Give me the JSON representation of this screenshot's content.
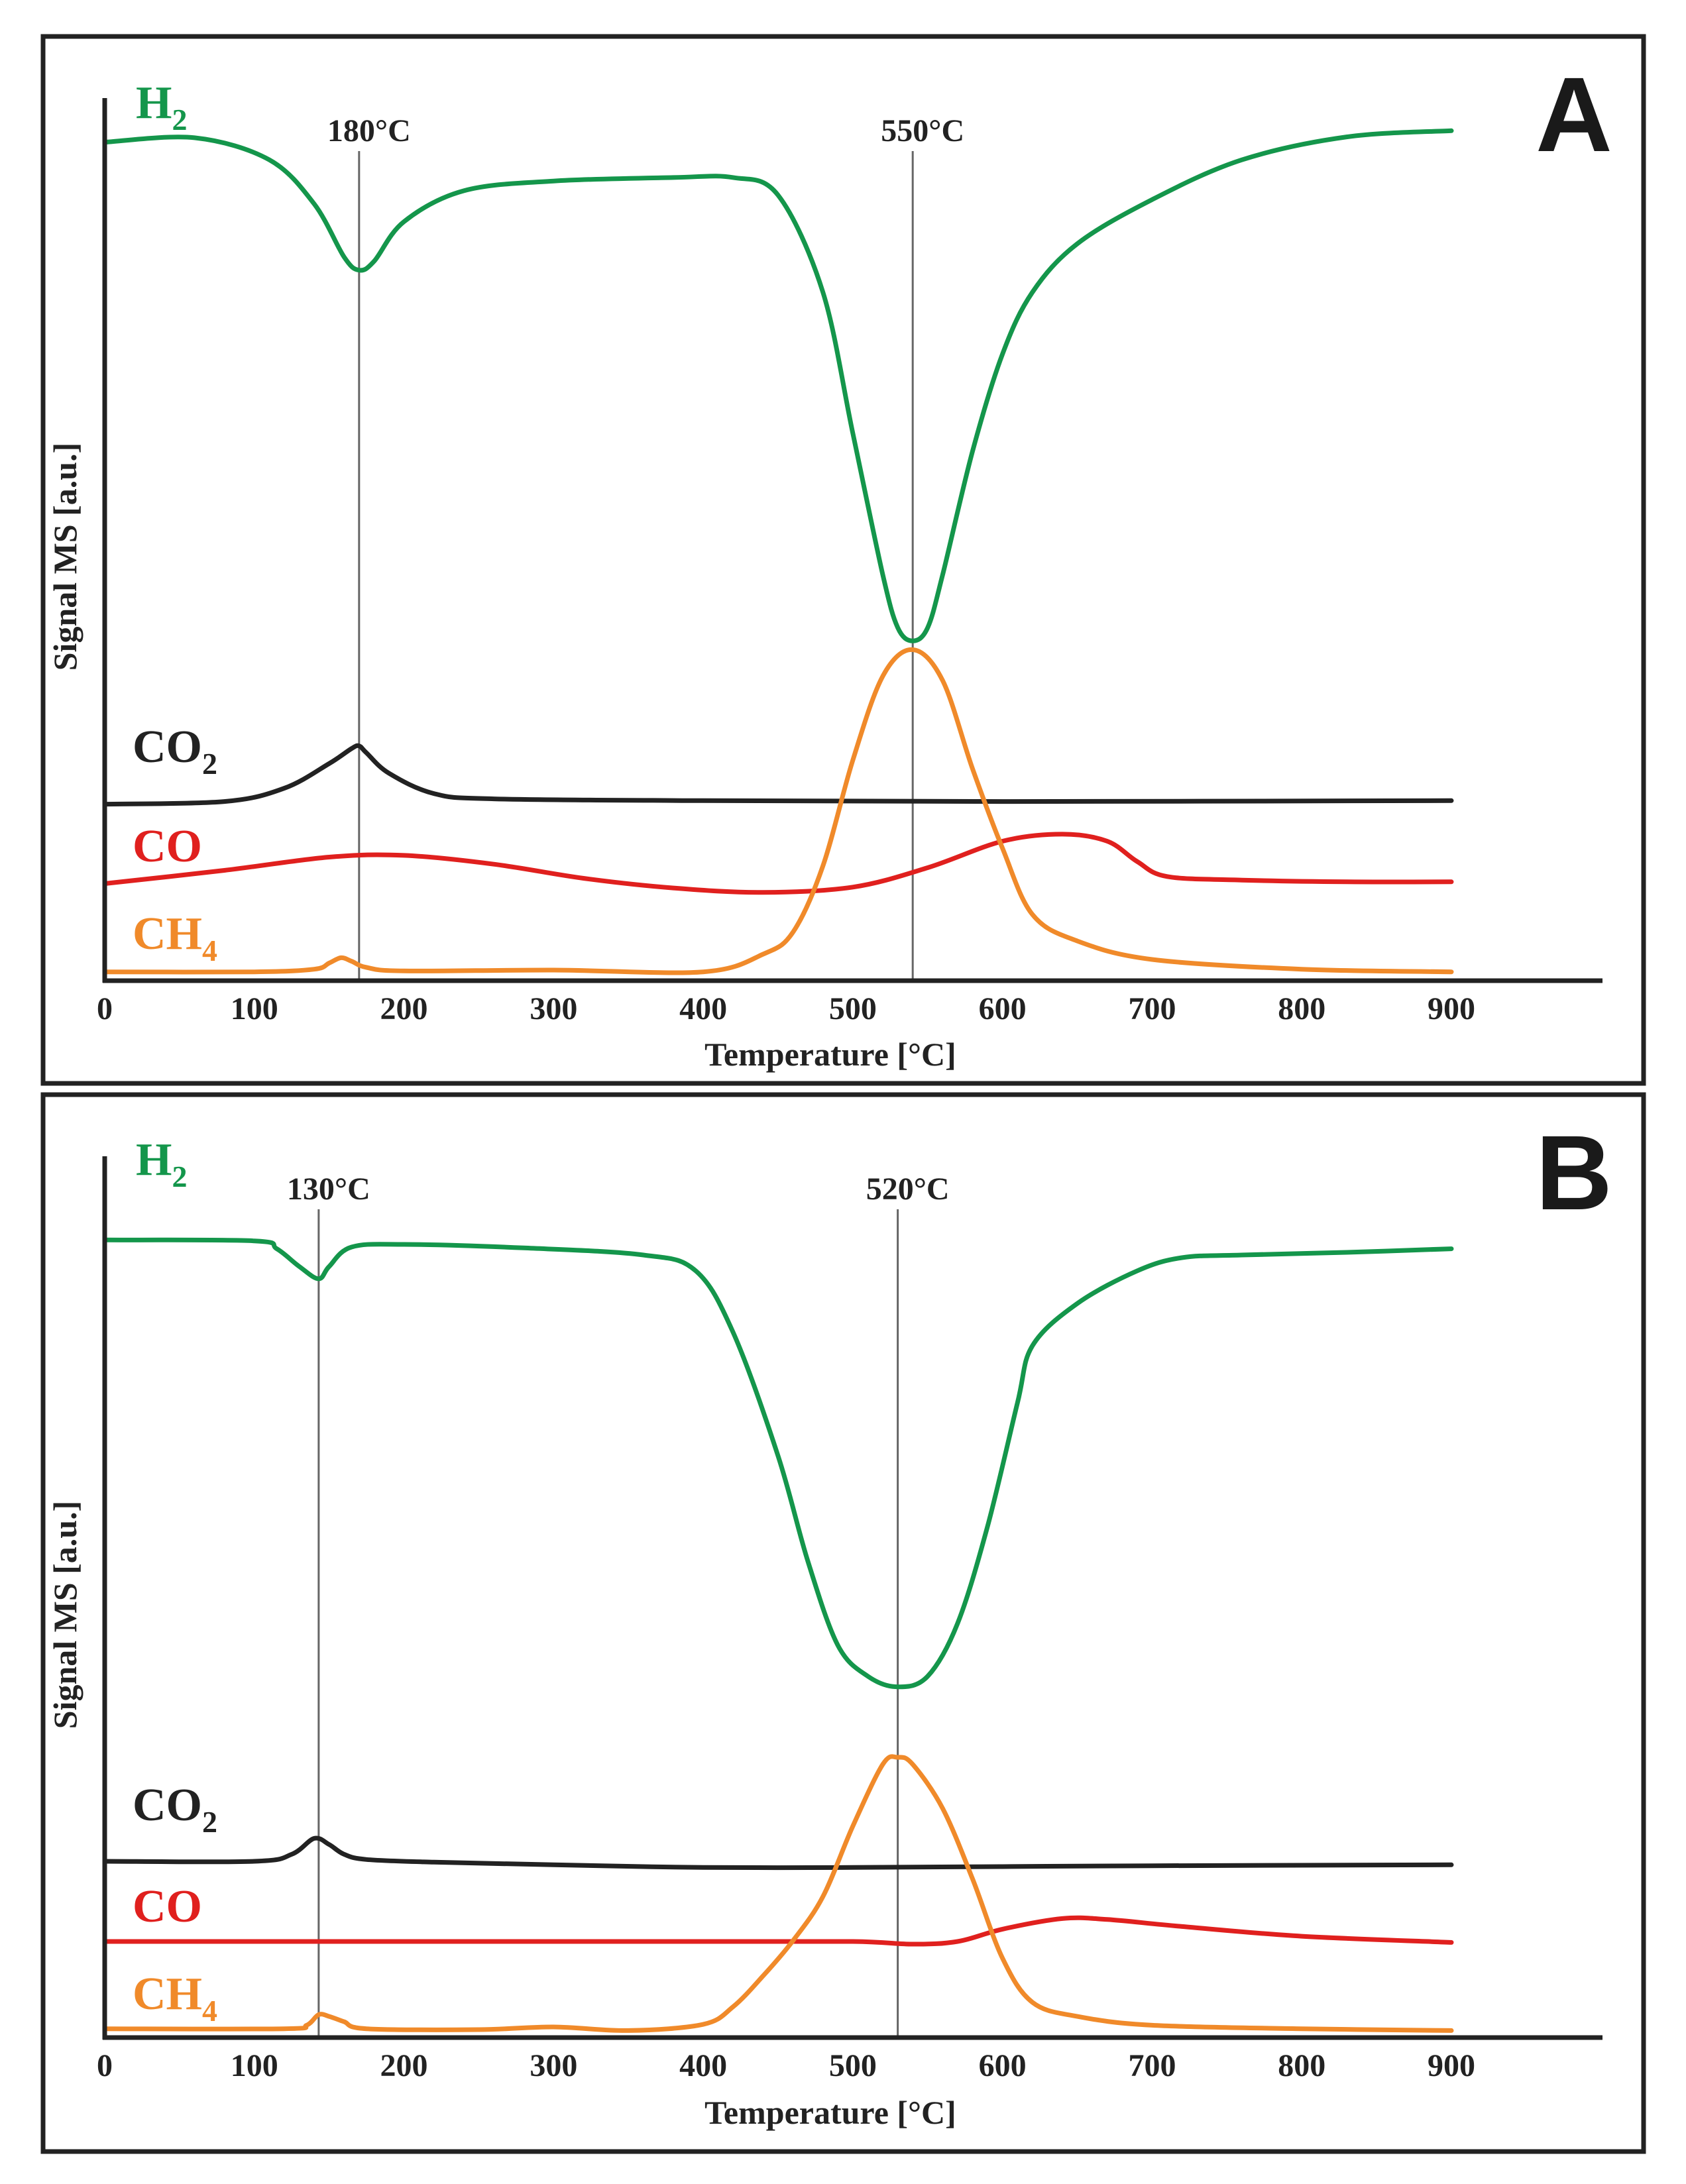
{
  "chart_data": [
    {
      "type": "line",
      "panel": "A",
      "xlabel": "Temperature [°C]",
      "ylabel": "Signal MS [a.u.]",
      "xlim": [
        0,
        1000
      ],
      "ylim": [
        0,
        100
      ],
      "xticks": [
        "0",
        "100",
        "200",
        "300",
        "400",
        "500",
        "600",
        "700",
        "800",
        "900"
      ],
      "markers": [
        {
          "x": 170,
          "label": "180°C"
        },
        {
          "x": 540,
          "label": "550°C"
        }
      ],
      "series": [
        {
          "name": "H2",
          "label_main": "H",
          "label_sub": "2",
          "color": "#14964b",
          "x": [
            0,
            60,
            110,
            140,
            160,
            170,
            180,
            200,
            240,
            300,
            380,
            420,
            450,
            480,
            500,
            520,
            530,
            540,
            550,
            560,
            580,
            600,
            620,
            650,
            700,
            760,
            830,
            900
          ],
          "y": [
            95,
            95.5,
            93,
            88,
            82,
            80.5,
            81.5,
            86,
            89.5,
            90.6,
            91,
            91,
            89,
            78,
            62,
            46,
            40,
            38.5,
            40,
            46,
            60,
            71,
            78,
            83.5,
            88.5,
            93,
            95.6,
            96.3
          ]
        },
        {
          "name": "CO2",
          "label_main": "CO",
          "label_sub": "2",
          "color": "#222222",
          "x": [
            0,
            80,
            120,
            150,
            165,
            170,
            175,
            190,
            220,
            260,
            400,
            600,
            900
          ],
          "y": [
            20,
            20.3,
            21.8,
            24.6,
            26.3,
            26.6,
            25.8,
            23.5,
            21.2,
            20.6,
            20.4,
            20.3,
            20.4
          ]
        },
        {
          "name": "CO",
          "label_main": "CO",
          "label_sub": "",
          "color": "#e0201e",
          "x": [
            0,
            80,
            150,
            200,
            260,
            320,
            380,
            440,
            500,
            550,
            600,
            640,
            670,
            690,
            710,
            760,
            830,
            900
          ],
          "y": [
            11,
            12.5,
            14,
            14.2,
            13.2,
            11.6,
            10.5,
            10,
            10.6,
            12.8,
            15.8,
            16.6,
            15.8,
            13.5,
            11.8,
            11.4,
            11.2,
            11.2
          ]
        },
        {
          "name": "CH4",
          "label_main": "CH",
          "label_sub": "4",
          "color": "#f08a2a",
          "x": [
            0,
            100,
            140,
            150,
            158,
            165,
            175,
            200,
            300,
            400,
            440,
            460,
            480,
            500,
            520,
            540,
            560,
            580,
            600,
            620,
            650,
            700,
            800,
            900
          ],
          "y": [
            1,
            1,
            1.3,
            2,
            2.6,
            2.2,
            1.5,
            1.1,
            1.2,
            1,
            3,
            5.5,
            13,
            25,
            34.5,
            37.5,
            34,
            24,
            15,
            7.5,
            4.5,
            2.4,
            1.3,
            1
          ]
        }
      ]
    },
    {
      "type": "line",
      "panel": "B",
      "xlabel": "Temperature [°C]",
      "ylabel": "Signal MS [a.u.]",
      "xlim": [
        0,
        1000
      ],
      "ylim": [
        0,
        100
      ],
      "xticks": [
        "0",
        "100",
        "200",
        "300",
        "400",
        "500",
        "600",
        "700",
        "800",
        "900"
      ],
      "markers": [
        {
          "x": 143,
          "label": "130°C"
        },
        {
          "x": 530,
          "label": "520°C"
        }
      ],
      "series": [
        {
          "name": "H2",
          "label_main": "H",
          "label_sub": "2",
          "color": "#14964b",
          "x": [
            0,
            100,
            115,
            130,
            143,
            150,
            165,
            200,
            280,
            360,
            395,
            420,
            450,
            470,
            490,
            510,
            530,
            550,
            570,
            590,
            610,
            620,
            650,
            690,
            720,
            760,
            830,
            900
          ],
          "y": [
            90.5,
            90.4,
            89.5,
            87.5,
            86.1,
            87.5,
            89.7,
            90,
            89.6,
            88.8,
            87,
            80,
            66,
            54,
            44.5,
            41,
            39.8,
            41,
            47,
            58,
            72,
            78.5,
            83.3,
            87,
            88.5,
            88.8,
            89.1,
            89.5
          ]
        },
        {
          "name": "CO2",
          "label_main": "CO",
          "label_sub": "2",
          "color": "#222222",
          "x": [
            0,
            100,
            125,
            140,
            150,
            160,
            175,
            220,
            300,
            400,
            500,
            600,
            700,
            900
          ],
          "y": [
            20,
            20,
            20.8,
            22.6,
            21.9,
            20.8,
            20.2,
            19.9,
            19.6,
            19.3,
            19.3,
            19.4,
            19.5,
            19.6
          ]
        },
        {
          "name": "CO",
          "label_main": "CO",
          "label_sub": "",
          "color": "#e0201e",
          "x": [
            0,
            200,
            400,
            500,
            540,
            570,
            600,
            640,
            670,
            720,
            800,
            900
          ],
          "y": [
            10.9,
            10.9,
            10.9,
            10.9,
            10.6,
            10.9,
            12.3,
            13.5,
            13.4,
            12.6,
            11.5,
            10.8
          ]
        },
        {
          "name": "CH4",
          "label_main": "CH",
          "label_sub": "4",
          "color": "#f08a2a",
          "x": [
            0,
            120,
            135,
            143,
            150,
            160,
            175,
            250,
            300,
            350,
            400,
            420,
            440,
            460,
            480,
            500,
            520,
            530,
            540,
            560,
            580,
            600,
            620,
            650,
            700,
            800,
            900
          ],
          "y": [
            1,
            1,
            1.4,
            2.6,
            2.4,
            1.8,
            1,
            0.9,
            1.2,
            0.8,
            1.5,
            3.5,
            7,
            11,
            16,
            24,
            31,
            31.8,
            31,
            26,
            18,
            9,
            4,
            2.4,
            1.4,
            1,
            0.8
          ]
        }
      ]
    }
  ]
}
